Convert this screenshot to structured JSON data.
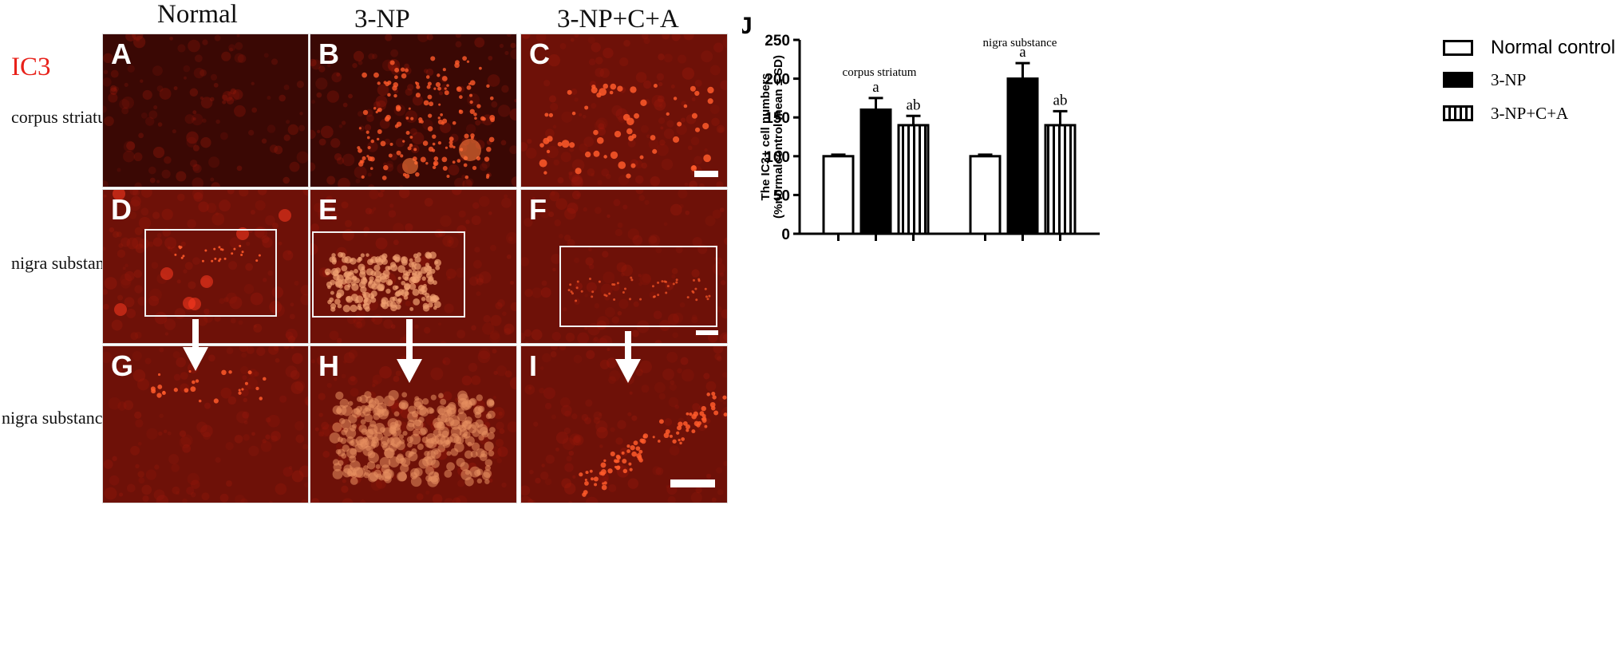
{
  "columns": [
    "Normal",
    "3-NP",
    "3-NP+C+A"
  ],
  "marker_label": "IC3",
  "row_labels": [
    "corpus striatum",
    "nigra substance",
    "nigra substance"
  ],
  "panel_letters": [
    "A",
    "B",
    "C",
    "D",
    "E",
    "F",
    "G",
    "H",
    "I"
  ],
  "chart_panel_letter": "J",
  "colors": {
    "marker": "#e8211a",
    "tissue_dark": "#3a0804",
    "tissue_mid": "#6e1108",
    "signal": "#ff5a2a"
  },
  "chart_data": {
    "type": "bar",
    "ylabel_line1": "The IC3+ cell numbers",
    "ylabel_line2": "(%normalcontrol mean ± SD)",
    "ylim": [
      0,
      250
    ],
    "yticks": [
      0,
      50,
      100,
      150,
      200,
      250
    ],
    "groups": [
      {
        "name": "corpus striatum",
        "values": [
          100,
          160,
          140
        ],
        "errors": [
          2,
          15,
          12
        ],
        "annotations": [
          "",
          "a",
          "ab"
        ]
      },
      {
        "name": "nigra substance",
        "values": [
          100,
          200,
          140
        ],
        "errors": [
          2,
          20,
          18
        ],
        "annotations": [
          "",
          "a",
          "ab"
        ]
      }
    ],
    "series": [
      {
        "name": "Normal control",
        "fill": "open"
      },
      {
        "name": "3-NP",
        "fill": "solid"
      },
      {
        "name": "3-NP+C+A",
        "fill": "vertical-stripes"
      }
    ]
  }
}
